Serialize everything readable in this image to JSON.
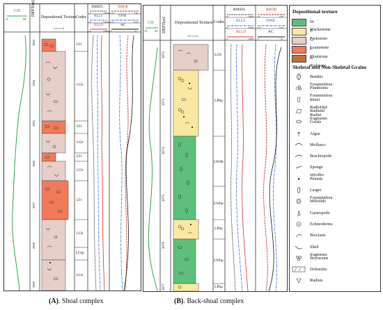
{
  "panelA": {
    "gr_label": "GR",
    "gr_min": "5",
    "gr_max": "55",
    "dept_header": "DEPT(m)",
    "texture_header": "Depositional Texture",
    "codes_header": "Codes",
    "rmsfl_label": "RMSFL",
    "rmsfl_min": "10",
    "rmsfl_max": "10000",
    "rlls_label": "RLLS",
    "rlls_min": "10",
    "rlls_max": "10000",
    "rlld_label": "RLLD",
    "rlld_min": "10",
    "rlld_max": "10000",
    "rhob_label": "RHOB",
    "rhob_min": "2.35",
    "rhob_max": "2.65",
    "nphi_label": "NPHI",
    "nphi_min": "0.15",
    "nphi_max": "0.05",
    "ac_label": "AC",
    "ac_min": "71",
    "ac_max": "51",
    "texture_scale": "W P G F R",
    "depths": [
      "2993",
      "2994",
      "2995",
      "2996",
      "2997",
      "2998",
      "2999"
    ],
    "codes": [
      "LFr",
      "LGb",
      "LFr",
      "LGb",
      "LFr",
      "LGb",
      "LFr",
      "LGb",
      "LGbp",
      "LGb"
    ]
  },
  "panelB": {
    "gr_label": "GR",
    "gr_min": "15",
    "gr_max": "35",
    "dept_header": "DEPT(m)",
    "texture_header": "Depositional Texture",
    "codes_header": "Codes",
    "rmsfl_label": "RMSFL",
    "rmsfl_min": "10",
    "rmsfl_max": "10000",
    "rlls_label": "RLLS",
    "rlls_min": "10",
    "rlls_max": "10000",
    "rlld_label": "RLLD",
    "rlld_min": "10",
    "rlld_max": "10000",
    "rhob_label": "RHOB",
    "rhob_min": "2.4",
    "rhob_max": "2.65",
    "nphi_label": "NPHI",
    "nphi_min": "0.15",
    "nphi_max": "0.05",
    "ac_label": "AC",
    "ac_min": "71",
    "ac_max": "51",
    "texture_scale": "W P G F R",
    "depths": [
      "3072",
      "3073",
      "3074",
      "3075",
      "3076",
      "3077"
    ],
    "codes": [
      "LGb",
      "LPbp",
      "LWdb",
      "LWbp",
      "LPbp",
      "LWbp",
      "LPbp"
    ]
  },
  "legend": {
    "texture_title": "Depositional texture",
    "textures": [
      {
        "label": "W.  Wackestone",
        "color": "#5dbf7b"
      },
      {
        "label": "P.  Packstone",
        "color": "#fbe8a0"
      },
      {
        "label": "G.  Grainstone",
        "color": "#e6cfc8"
      },
      {
        "label": "F.  Floatstone",
        "color": "#f07a5a"
      },
      {
        "label": "R.  Rudstone",
        "color": "#c0703a"
      }
    ],
    "grains_title": "Skeletal and Non-Skeletal Grains",
    "grains": [
      {
        "label": "Benthic Foraminifera",
        "icon": "benthic-foram-icon"
      },
      {
        "label": "Planktonic Foraminifera",
        "icon": "planktonic-foram-icon"
      },
      {
        "label": "Intact Radiolitid Rudist",
        "icon": "radiolitid-rudist-icon"
      },
      {
        "label": "Rudistid fragments",
        "icon": "rudist-fragment-icon"
      },
      {
        "label": "Corals",
        "icon": "coral-icon"
      },
      {
        "label": "Algae",
        "icon": "algae-icon"
      },
      {
        "label": "Molluscs",
        "icon": "mollusc-icon"
      },
      {
        "label": "Brachiopods",
        "icon": "brachiopod-icon"
      },
      {
        "label": "Sponge spicules",
        "icon": "sponge-spicule-icon"
      },
      {
        "label": "Peloids",
        "icon": "peloid-icon"
      },
      {
        "label": "Larger Foraminifera",
        "icon": "larger-foram-icon"
      },
      {
        "label": "Miliolids",
        "icon": "miliolid-icon"
      },
      {
        "label": "Gastropods",
        "icon": "gastropod-icon"
      },
      {
        "label": "Echinoderms",
        "icon": "echinoderm-icon"
      },
      {
        "label": "Bioclasts",
        "icon": "bioclast-icon"
      },
      {
        "label": "Shell fragments",
        "icon": "shell-fragment-icon"
      },
      {
        "label": "Bryozoans",
        "icon": "bryozoan-icon"
      },
      {
        "label": "Dolomitic",
        "icon": "dolomitic-icon"
      },
      {
        "label": "Rudists",
        "icon": "rudist-icon"
      }
    ]
  },
  "captions": {
    "a_letter": "(A)",
    "a_text": ". Shoal complex",
    "b_letter": "(B)",
    "b_text": ". Back-shoal complex"
  },
  "colors": {
    "gr": "#2aa84a",
    "rmsfl": "#222222",
    "rlls": "#2a5bd8",
    "rlld": "#d8302a",
    "rhob": "#c2281e",
    "nphi": "#1e5fc2",
    "ac": "#111111"
  }
}
